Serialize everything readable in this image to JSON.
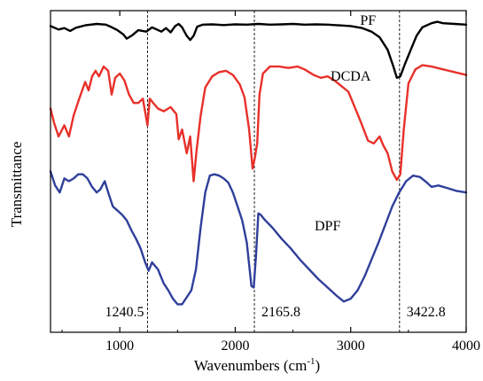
{
  "chart_data": {
    "type": "line",
    "xlabel_main": "Wavenumbers (cm",
    "xlabel_sup": "-1",
    "xlabel_close": ")",
    "ylabel": "Transmittance",
    "xlim": [
      400,
      4000
    ],
    "xticks": [
      1000,
      2000,
      3000,
      4000
    ],
    "y_ticks_shown": false,
    "grid": false,
    "annotations": [
      {
        "x": 1240.5,
        "label": "1240.5"
      },
      {
        "x": 2165.8,
        "label": "2165.8"
      },
      {
        "x": 3422.8,
        "label": "3422.8"
      }
    ],
    "series": [
      {
        "name": "PF",
        "color": "#000000",
        "label_x": 3150,
        "label_y": 1.0,
        "points": [
          [
            400,
            0.9
          ],
          [
            470,
            0.65
          ],
          [
            520,
            0.75
          ],
          [
            570,
            0.55
          ],
          [
            620,
            0.78
          ],
          [
            700,
            0.95
          ],
          [
            800,
            1.05
          ],
          [
            880,
            1.0
          ],
          [
            920,
            0.85
          ],
          [
            980,
            0.6
          ],
          [
            1030,
            0.3
          ],
          [
            1060,
            0.0
          ],
          [
            1110,
            0.25
          ],
          [
            1160,
            0.6
          ],
          [
            1230,
            0.5
          ],
          [
            1280,
            0.8
          ],
          [
            1360,
            0.5
          ],
          [
            1400,
            0.75
          ],
          [
            1440,
            0.45
          ],
          [
            1480,
            0.9
          ],
          [
            1510,
            1.05
          ],
          [
            1540,
            0.8
          ],
          [
            1580,
            0.2
          ],
          [
            1610,
            -0.1
          ],
          [
            1640,
            0.2
          ],
          [
            1670,
            0.85
          ],
          [
            1720,
            1.0
          ],
          [
            1800,
            1.02
          ],
          [
            1900,
            0.97
          ],
          [
            2000,
            1.02
          ],
          [
            2100,
            1.0
          ],
          [
            2200,
            1.05
          ],
          [
            2300,
            1.0
          ],
          [
            2400,
            1.02
          ],
          [
            2500,
            1.05
          ],
          [
            2600,
            1.0
          ],
          [
            2700,
            1.02
          ],
          [
            2800,
            1.0
          ],
          [
            2900,
            0.95
          ],
          [
            3000,
            0.9
          ],
          [
            3100,
            0.75
          ],
          [
            3180,
            0.5
          ],
          [
            3250,
            0.1
          ],
          [
            3320,
            -0.8
          ],
          [
            3370,
            -2.0
          ],
          [
            3400,
            -2.8
          ],
          [
            3430,
            -2.7
          ],
          [
            3470,
            -1.8
          ],
          [
            3520,
            -0.8
          ],
          [
            3570,
            0.2
          ],
          [
            3620,
            0.8
          ],
          [
            3700,
            1.1
          ],
          [
            3750,
            1.2
          ],
          [
            3800,
            1.1
          ],
          [
            3900,
            1.05
          ],
          [
            4000,
            1.0
          ]
        ]
      },
      {
        "name": "DCDA",
        "color": "#e8302a",
        "label_x": 3000,
        "label_y": -3.0,
        "points": [
          [
            400,
            -5.0
          ],
          [
            430,
            -6.0
          ],
          [
            470,
            -7.0
          ],
          [
            520,
            -6.2
          ],
          [
            560,
            -7.0
          ],
          [
            600,
            -5.5
          ],
          [
            640,
            -4.5
          ],
          [
            670,
            -3.8
          ],
          [
            700,
            -3.1
          ],
          [
            730,
            -3.7
          ],
          [
            760,
            -2.7
          ],
          [
            790,
            -2.3
          ],
          [
            820,
            -2.7
          ],
          [
            860,
            -2.0
          ],
          [
            900,
            -2.3
          ],
          [
            930,
            -4.0
          ],
          [
            960,
            -2.8
          ],
          [
            1000,
            -2.5
          ],
          [
            1040,
            -3.0
          ],
          [
            1080,
            -4.0
          ],
          [
            1120,
            -4.6
          ],
          [
            1160,
            -4.6
          ],
          [
            1200,
            -4.3
          ],
          [
            1240,
            -6.2
          ],
          [
            1260,
            -4.3
          ],
          [
            1290,
            -4.6
          ],
          [
            1330,
            -5.0
          ],
          [
            1380,
            -5.2
          ],
          [
            1440,
            -4.9
          ],
          [
            1490,
            -5.4
          ],
          [
            1510,
            -7.2
          ],
          [
            1540,
            -6.5
          ],
          [
            1580,
            -8.2
          ],
          [
            1610,
            -7.0
          ],
          [
            1640,
            -10.2
          ],
          [
            1665,
            -8.0
          ],
          [
            1700,
            -5.5
          ],
          [
            1740,
            -3.5
          ],
          [
            1800,
            -2.7
          ],
          [
            1860,
            -2.4
          ],
          [
            1920,
            -2.3
          ],
          [
            1980,
            -2.6
          ],
          [
            2040,
            -3.3
          ],
          [
            2080,
            -4.2
          ],
          [
            2120,
            -6.5
          ],
          [
            2150,
            -9.3
          ],
          [
            2170,
            -8.5
          ],
          [
            2190,
            -7.5
          ],
          [
            2210,
            -4.0
          ],
          [
            2240,
            -2.5
          ],
          [
            2300,
            -2.0
          ],
          [
            2380,
            -2.0
          ],
          [
            2460,
            -2.1
          ],
          [
            2540,
            -2.0
          ],
          [
            2600,
            -2.2
          ],
          [
            2680,
            -2.6
          ],
          [
            2740,
            -2.8
          ],
          [
            2800,
            -2.7
          ],
          [
            2860,
            -3.0
          ],
          [
            2920,
            -3.4
          ],
          [
            2980,
            -3.8
          ],
          [
            3020,
            -4.6
          ],
          [
            3080,
            -5.8
          ],
          [
            3150,
            -7.3
          ],
          [
            3200,
            -7.5
          ],
          [
            3250,
            -7.0
          ],
          [
            3280,
            -7.6
          ],
          [
            3320,
            -8.2
          ],
          [
            3360,
            -9.5
          ],
          [
            3400,
            -10.1
          ],
          [
            3430,
            -9.7
          ],
          [
            3460,
            -6.5
          ],
          [
            3500,
            -3.2
          ],
          [
            3560,
            -2.2
          ],
          [
            3620,
            -1.9
          ],
          [
            3700,
            -2.0
          ],
          [
            3800,
            -2.2
          ],
          [
            3900,
            -2.4
          ],
          [
            4000,
            -2.6
          ]
        ]
      },
      {
        "name": "DPF",
        "color": "#2f3f9a",
        "label_x": 2800,
        "label_y": -13.7,
        "points": [
          [
            400,
            -9.5
          ],
          [
            440,
            -10.5
          ],
          [
            480,
            -11.0
          ],
          [
            520,
            -10.0
          ],
          [
            560,
            -10.2
          ],
          [
            600,
            -10.0
          ],
          [
            640,
            -9.7
          ],
          [
            680,
            -9.7
          ],
          [
            720,
            -10.0
          ],
          [
            760,
            -10.6
          ],
          [
            800,
            -11.0
          ],
          [
            830,
            -10.8
          ],
          [
            870,
            -10.2
          ],
          [
            900,
            -11.0
          ],
          [
            940,
            -12.0
          ],
          [
            980,
            -12.3
          ],
          [
            1020,
            -12.6
          ],
          [
            1060,
            -13.0
          ],
          [
            1100,
            -13.7
          ],
          [
            1140,
            -14.3
          ],
          [
            1180,
            -15.0
          ],
          [
            1220,
            -16.0
          ],
          [
            1250,
            -16.6
          ],
          [
            1280,
            -16.0
          ],
          [
            1330,
            -16.5
          ],
          [
            1380,
            -17.5
          ],
          [
            1420,
            -18.0
          ],
          [
            1460,
            -18.6
          ],
          [
            1500,
            -19.0
          ],
          [
            1540,
            -19.0
          ],
          [
            1580,
            -18.5
          ],
          [
            1620,
            -18.0
          ],
          [
            1660,
            -16.5
          ],
          [
            1700,
            -13.5
          ],
          [
            1740,
            -11.0
          ],
          [
            1780,
            -9.8
          ],
          [
            1820,
            -9.7
          ],
          [
            1860,
            -9.8
          ],
          [
            1900,
            -10.0
          ],
          [
            1940,
            -10.3
          ],
          [
            1980,
            -11.0
          ],
          [
            2020,
            -12.0
          ],
          [
            2060,
            -13.0
          ],
          [
            2100,
            -14.6
          ],
          [
            2140,
            -17.7
          ],
          [
            2160,
            -17.8
          ],
          [
            2180,
            -15.5
          ],
          [
            2200,
            -12.5
          ],
          [
            2220,
            -12.6
          ],
          [
            2260,
            -13.0
          ],
          [
            2320,
            -13.5
          ],
          [
            2400,
            -14.3
          ],
          [
            2480,
            -15.0
          ],
          [
            2560,
            -15.8
          ],
          [
            2640,
            -16.5
          ],
          [
            2720,
            -17.2
          ],
          [
            2800,
            -17.8
          ],
          [
            2880,
            -18.4
          ],
          [
            2940,
            -18.8
          ],
          [
            3000,
            -18.6
          ],
          [
            3060,
            -18.0
          ],
          [
            3120,
            -17.0
          ],
          [
            3180,
            -15.8
          ],
          [
            3240,
            -14.6
          ],
          [
            3300,
            -13.3
          ],
          [
            3360,
            -12.0
          ],
          [
            3420,
            -11.0
          ],
          [
            3480,
            -10.2
          ],
          [
            3540,
            -9.8
          ],
          [
            3600,
            -9.9
          ],
          [
            3660,
            -10.3
          ],
          [
            3700,
            -10.6
          ],
          [
            3760,
            -10.5
          ],
          [
            3840,
            -10.7
          ],
          [
            3920,
            -10.9
          ],
          [
            4000,
            -11.0
          ]
        ]
      }
    ]
  }
}
